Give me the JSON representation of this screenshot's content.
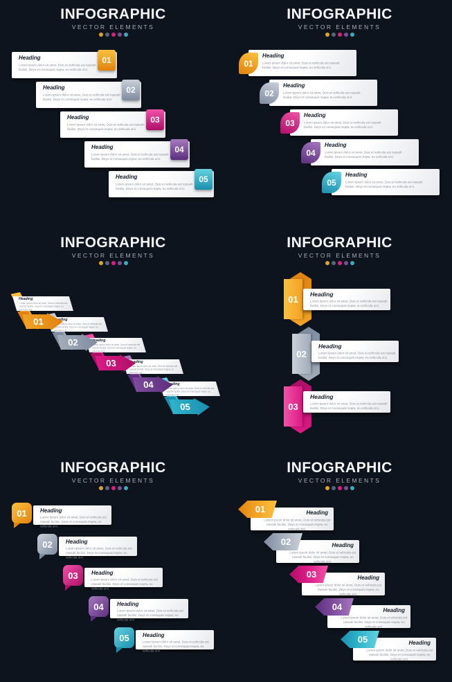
{
  "header": {
    "title": "INFOGRAPHIC",
    "subtitle": "VECTOR ELEMENTS"
  },
  "card": {
    "heading": "Heading",
    "body": "Lorem ipsum dolor sit amet, Duis et vehicula est nassah facilisi. Deys et consequat reqew, eu vehicula orci."
  },
  "palette": {
    "background": "#0D141D",
    "heading_text": "#161F2B",
    "body_text": "#8A9098",
    "dot_colors": [
      "#DFA32A",
      "#56677D",
      "#D2247E",
      "#7B4F93",
      "#3FAAB8"
    ],
    "step_colors": [
      {
        "name": "orange",
        "light": "#FBC13E",
        "main": "#F2A227",
        "dark": "#E0830E"
      },
      {
        "name": "gray",
        "light": "#C9D0D9",
        "main": "#A2ACBA",
        "dark": "#7F8BA0"
      },
      {
        "name": "pink",
        "light": "#F153A8",
        "main": "#DB1A84",
        "dark": "#AE0F67"
      },
      {
        "name": "purple",
        "light": "#A678BE",
        "main": "#7E4B9B",
        "dark": "#5C2F7E"
      },
      {
        "name": "teal",
        "light": "#64D2E0",
        "main": "#2FB3CB",
        "dark": "#1A8FAD"
      }
    ]
  },
  "panels": [
    {
      "name": "tag-right-list",
      "steps": [
        "01",
        "02",
        "03",
        "04",
        "05"
      ]
    },
    {
      "name": "tag-left-list",
      "steps": [
        "01",
        "02",
        "03",
        "04",
        "05"
      ]
    },
    {
      "name": "diagonal-ribbon-steps",
      "steps": [
        "01",
        "02",
        "03",
        "04",
        "05"
      ]
    },
    {
      "name": "vertical-crystal-steps",
      "steps": [
        "01",
        "02",
        "03"
      ]
    },
    {
      "name": "speech-bubble-steps",
      "steps": [
        "01",
        "02",
        "03",
        "04",
        "05"
      ]
    },
    {
      "name": "flag-arrow-steps",
      "steps": [
        "01",
        "02",
        "03",
        "04",
        "05"
      ]
    }
  ]
}
